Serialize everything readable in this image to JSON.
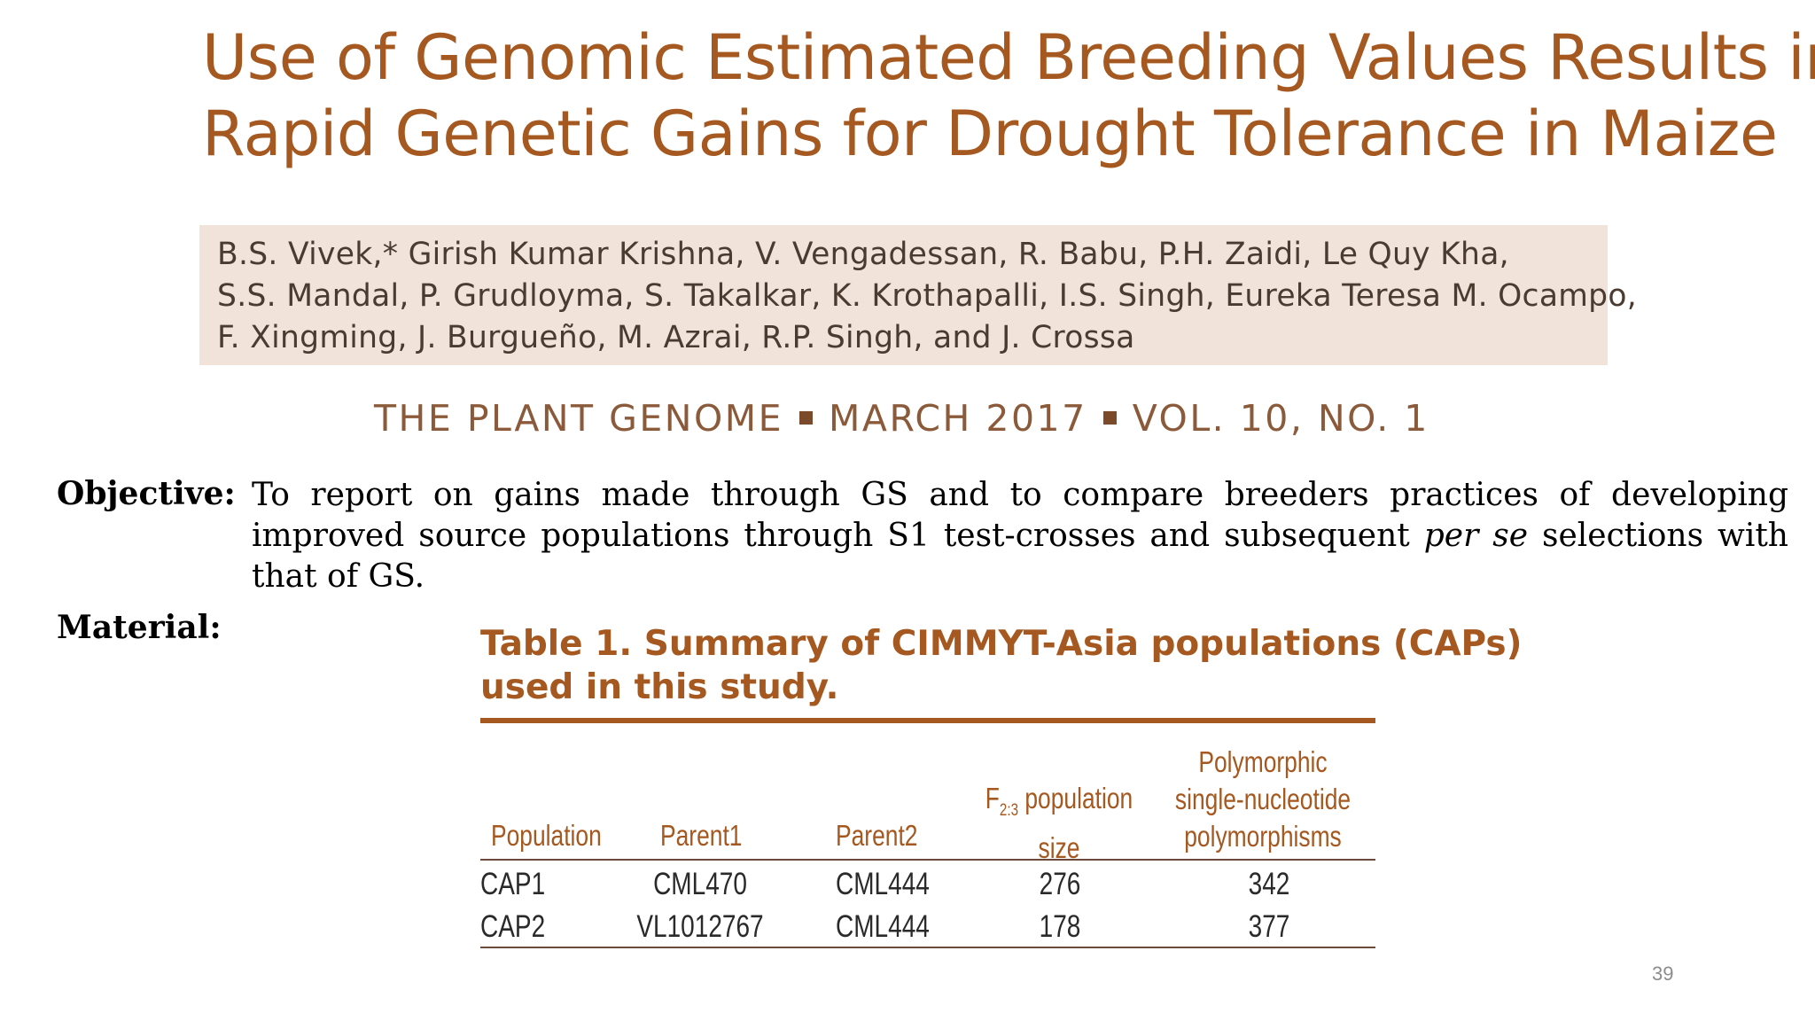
{
  "slide": {
    "title_lines": [
      "Use of Genomic Estimated Breeding Values Results in",
      "Rapid Genetic Gains for Drought Tolerance in Maize"
    ],
    "author_lines": [
      "B.S. Vivek,* Girish Kumar Krishna, V. Vengadessan, R. Babu, P.H. Zaidi, Le Quy Kha,",
      "S.S. Mandal, P. Grudloyma, S. Takalkar, K. Krothapalli, I.S. Singh, Eureka Teresa M. Ocampo,",
      "F. Xingming, J. Burgueño, M. Azrai, R.P. Singh, and J. Crossa"
    ],
    "journal": {
      "name": "THE PLANT GENOME",
      "date": "MARCH 2017",
      "volume": "VOL. 10, NO. 1"
    },
    "objective": {
      "label": "Objective:",
      "text_before": "To report on gains made through GS and to compare breeders practices of developing improved source populations through S1 test-crosses and subsequent ",
      "text_italic": "per se",
      "text_after": " selections with that of GS."
    },
    "material": {
      "label": "Material:"
    },
    "table": {
      "title_lines": [
        "Table 1. Summary of CIMMYT-Asia populations (CAPs)",
        "used in this study."
      ],
      "headers": {
        "population": "Population",
        "parent1": "Parent1",
        "parent2": "Parent2",
        "pop_size_prefix": "F",
        "pop_size_sub": "2:3",
        "pop_size_line1": " population",
        "pop_size_line2": "size",
        "snp_line1": "Polymorphic",
        "snp_line2": "single-nucleotide",
        "snp_line3": "polymorphisms"
      },
      "rows": [
        {
          "population": "CAP1",
          "parent1": "CML470",
          "parent2": "CML444",
          "size": "276",
          "snps": "342"
        },
        {
          "population": "CAP2",
          "parent1": "VL1012767",
          "parent2": "CML444",
          "size": "178",
          "snps": "377"
        }
      ]
    },
    "page_number": "39"
  }
}
